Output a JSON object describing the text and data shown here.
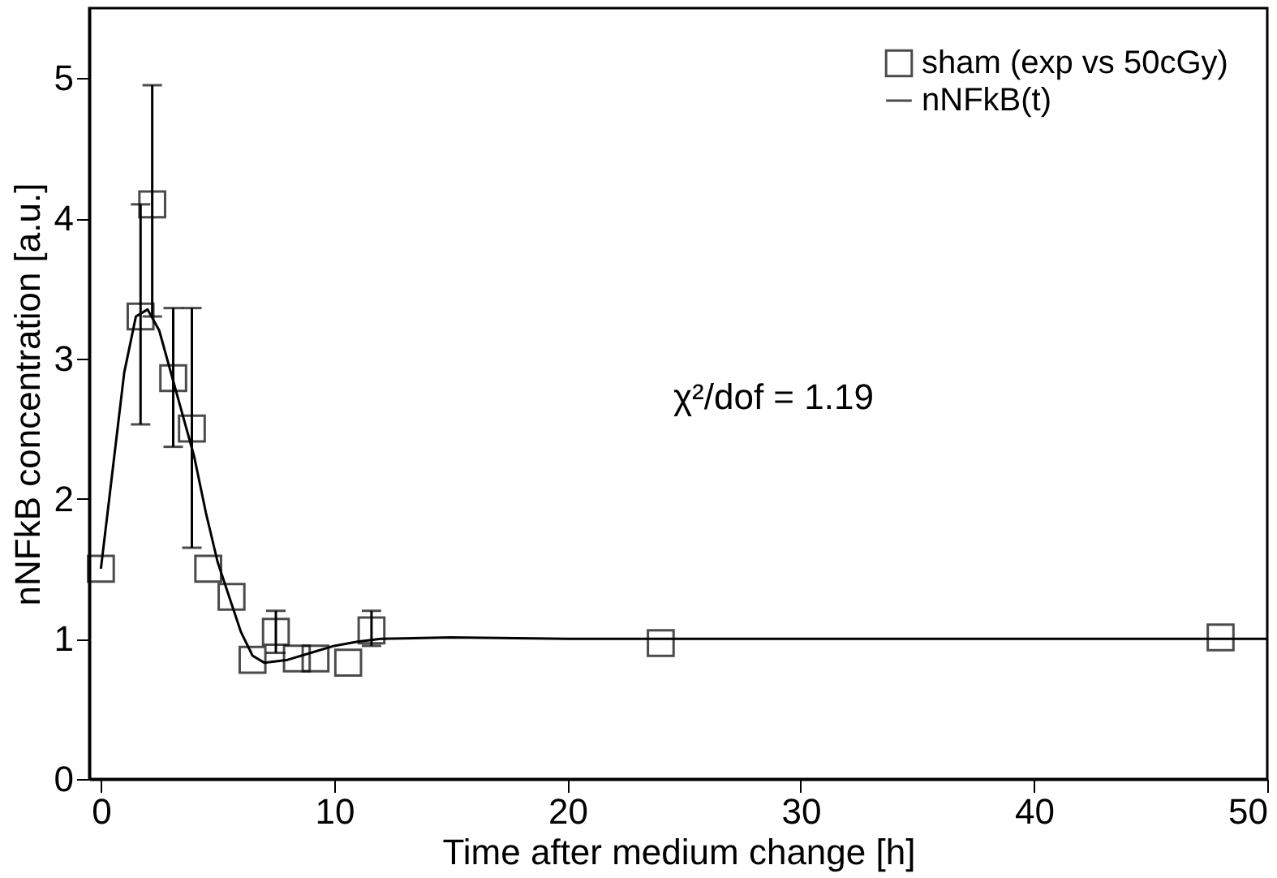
{
  "chart_data": {
    "type": "scatter",
    "xlabel": "Time after medium change [h]",
    "ylabel": "nNFkB concentration [a.u.]",
    "xlim": [
      -0.5,
      50
    ],
    "xticks": [
      0,
      10,
      20,
      30,
      40,
      50
    ],
    "ylim": [
      0,
      5.5
    ],
    "yticks": [
      0,
      1,
      2,
      3,
      4,
      5
    ],
    "grid": false,
    "legend": "top right",
    "annotations": [
      "χ²/dof = 1.19"
    ],
    "series": [
      {
        "name": "sham (exp vs 50cGy)",
        "marker": "square",
        "color": "#000000",
        "x": [
          0,
          1.7,
          2.2,
          3.1,
          3.9,
          4.6,
          5.6,
          6.5,
          7.5,
          8.4,
          9.2,
          10.6,
          11.6,
          24,
          48
        ],
        "values": [
          1.5,
          3.3,
          4.1,
          2.86,
          2.5,
          1.5,
          1.3,
          0.85,
          1.05,
          0.86,
          0.86,
          0.83,
          1.06,
          0.97,
          1.01
        ],
        "errors": [
          null,
          [
            2.53,
            4.1
          ],
          [
            3.3,
            4.95
          ],
          [
            2.37,
            3.36
          ],
          [
            1.65,
            3.36
          ],
          null,
          null,
          null,
          [
            0.9,
            1.2
          ],
          null,
          null,
          null,
          [
            0.95,
            1.2
          ],
          null,
          null
        ]
      },
      {
        "name": "nNFkB(t)",
        "type": "line",
        "line_style": "solid",
        "color": "#000000",
        "x": [
          0,
          0.5,
          1,
          1.5,
          2,
          2.5,
          3,
          3.5,
          4,
          4.5,
          5,
          5.5,
          6,
          6.5,
          7,
          8,
          9,
          10,
          11,
          12,
          15,
          20,
          30,
          50
        ],
        "values": [
          1.5,
          2.2,
          2.9,
          3.3,
          3.35,
          3.2,
          2.9,
          2.6,
          2.3,
          1.9,
          1.55,
          1.3,
          1.05,
          0.88,
          0.83,
          0.85,
          0.9,
          0.95,
          0.98,
          1.0,
          1.01,
          1.0,
          1.0,
          1.0
        ]
      }
    ]
  }
}
